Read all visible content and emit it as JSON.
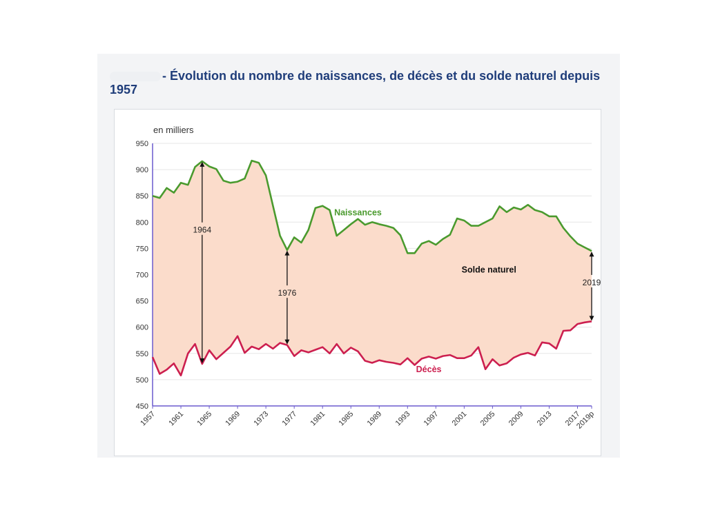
{
  "header": {
    "title_prefix": "- Évolution du nombre de naissances, de décès et du solde naturel depuis",
    "title_year": "1957"
  },
  "colors": {
    "naissances": "#4a9a2e",
    "deces": "#cc1f4f",
    "fill": "#fbdccb",
    "axis": "#6a5acd",
    "grid": "#e6e6e6",
    "title": "#1f3d7a"
  },
  "chart_data": {
    "type": "area",
    "ylabel": "en milliers",
    "ylim": [
      450,
      950
    ],
    "yticks": [
      450,
      500,
      550,
      600,
      650,
      700,
      750,
      800,
      850,
      900,
      950
    ],
    "xticks": [
      "1957",
      "1961",
      "1965",
      "1969",
      "1973",
      "1977",
      "1981",
      "1985",
      "1989",
      "1993",
      "1997",
      "2001",
      "2005",
      "2009",
      "2013",
      "2017",
      "2019p"
    ],
    "grid": true,
    "x": [
      1957,
      1958,
      1959,
      1960,
      1961,
      1962,
      1963,
      1964,
      1965,
      1966,
      1967,
      1968,
      1969,
      1970,
      1971,
      1972,
      1973,
      1974,
      1975,
      1976,
      1977,
      1978,
      1979,
      1980,
      1981,
      1982,
      1983,
      1984,
      1985,
      1986,
      1987,
      1988,
      1989,
      1990,
      1991,
      1992,
      1993,
      1994,
      1995,
      1996,
      1997,
      1998,
      1999,
      2000,
      2001,
      2002,
      2003,
      2004,
      2005,
      2006,
      2007,
      2008,
      2009,
      2010,
      2011,
      2012,
      2013,
      2014,
      2015,
      2016,
      2017,
      2018,
      2019
    ],
    "series": [
      {
        "name": "Naissances",
        "values": [
          850,
          846,
          865,
          856,
          875,
          871,
          905,
          916,
          906,
          901,
          879,
          875,
          877,
          883,
          917,
          913,
          889,
          831,
          774,
          747,
          771,
          761,
          785,
          827,
          831,
          823,
          774,
          785,
          796,
          806,
          795,
          800,
          796,
          793,
          789,
          775,
          741,
          741,
          759,
          764,
          757,
          768,
          776,
          807,
          803,
          793,
          793,
          800,
          807,
          830,
          819,
          828,
          824,
          833,
          823,
          819,
          811,
          811,
          789,
          773,
          759,
          752,
          745
        ]
      },
      {
        "name": "Décès",
        "values": [
          543,
          511,
          519,
          531,
          508,
          550,
          568,
          530,
          556,
          539,
          551,
          563,
          583,
          551,
          563,
          558,
          568,
          559,
          570,
          566,
          545,
          556,
          552,
          557,
          562,
          550,
          568,
          550,
          561,
          554,
          536,
          532,
          537,
          534,
          532,
          529,
          541,
          528,
          540,
          544,
          540,
          545,
          547,
          541,
          541,
          546,
          562,
          520,
          539,
          527,
          531,
          542,
          548,
          551,
          546,
          571,
          569,
          559,
          593,
          594,
          606,
          609,
          611
        ]
      }
    ],
    "annotations": [
      {
        "label": "Naissances",
        "x": 1986,
        "y": 813,
        "color_key": "naissances"
      },
      {
        "label": "Décès",
        "x": 1996,
        "y": 514,
        "color_key": "deces"
      },
      {
        "label": "Solde naturel",
        "x": 2004.5,
        "y": 704,
        "color_key": "text"
      }
    ],
    "arrows": [
      {
        "label": "1964",
        "x": 1964,
        "y_top": 916,
        "y_bottom": 530,
        "label_y": 785
      },
      {
        "label": "1976",
        "x": 1976,
        "y_top": 747,
        "y_bottom": 566,
        "label_y": 665
      },
      {
        "label": "2019",
        "x": 2019,
        "y_top": 745,
        "y_bottom": 611,
        "label_y": 685
      }
    ]
  }
}
